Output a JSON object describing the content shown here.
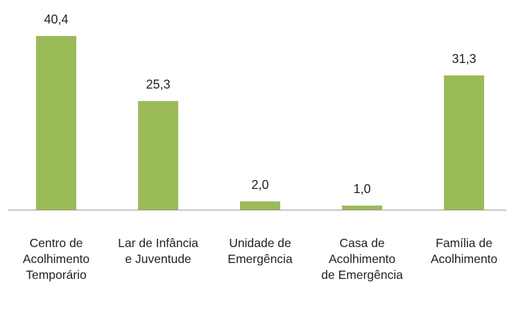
{
  "chart_data": {
    "type": "bar",
    "categories": [
      "Centro de Acolhimento Temporário",
      "Lar de Infância e Juventude",
      "Unidade de Emergência",
      "Casa de Acolhimento de Emergência",
      "Família de Acolhimento"
    ],
    "values": [
      40.4,
      25.3,
      2.0,
      1.0,
      31.3
    ],
    "value_labels": [
      "40,4",
      "25,3",
      "2,0",
      "1,0",
      "31,3"
    ],
    "color": "#9bbb59"
  }
}
